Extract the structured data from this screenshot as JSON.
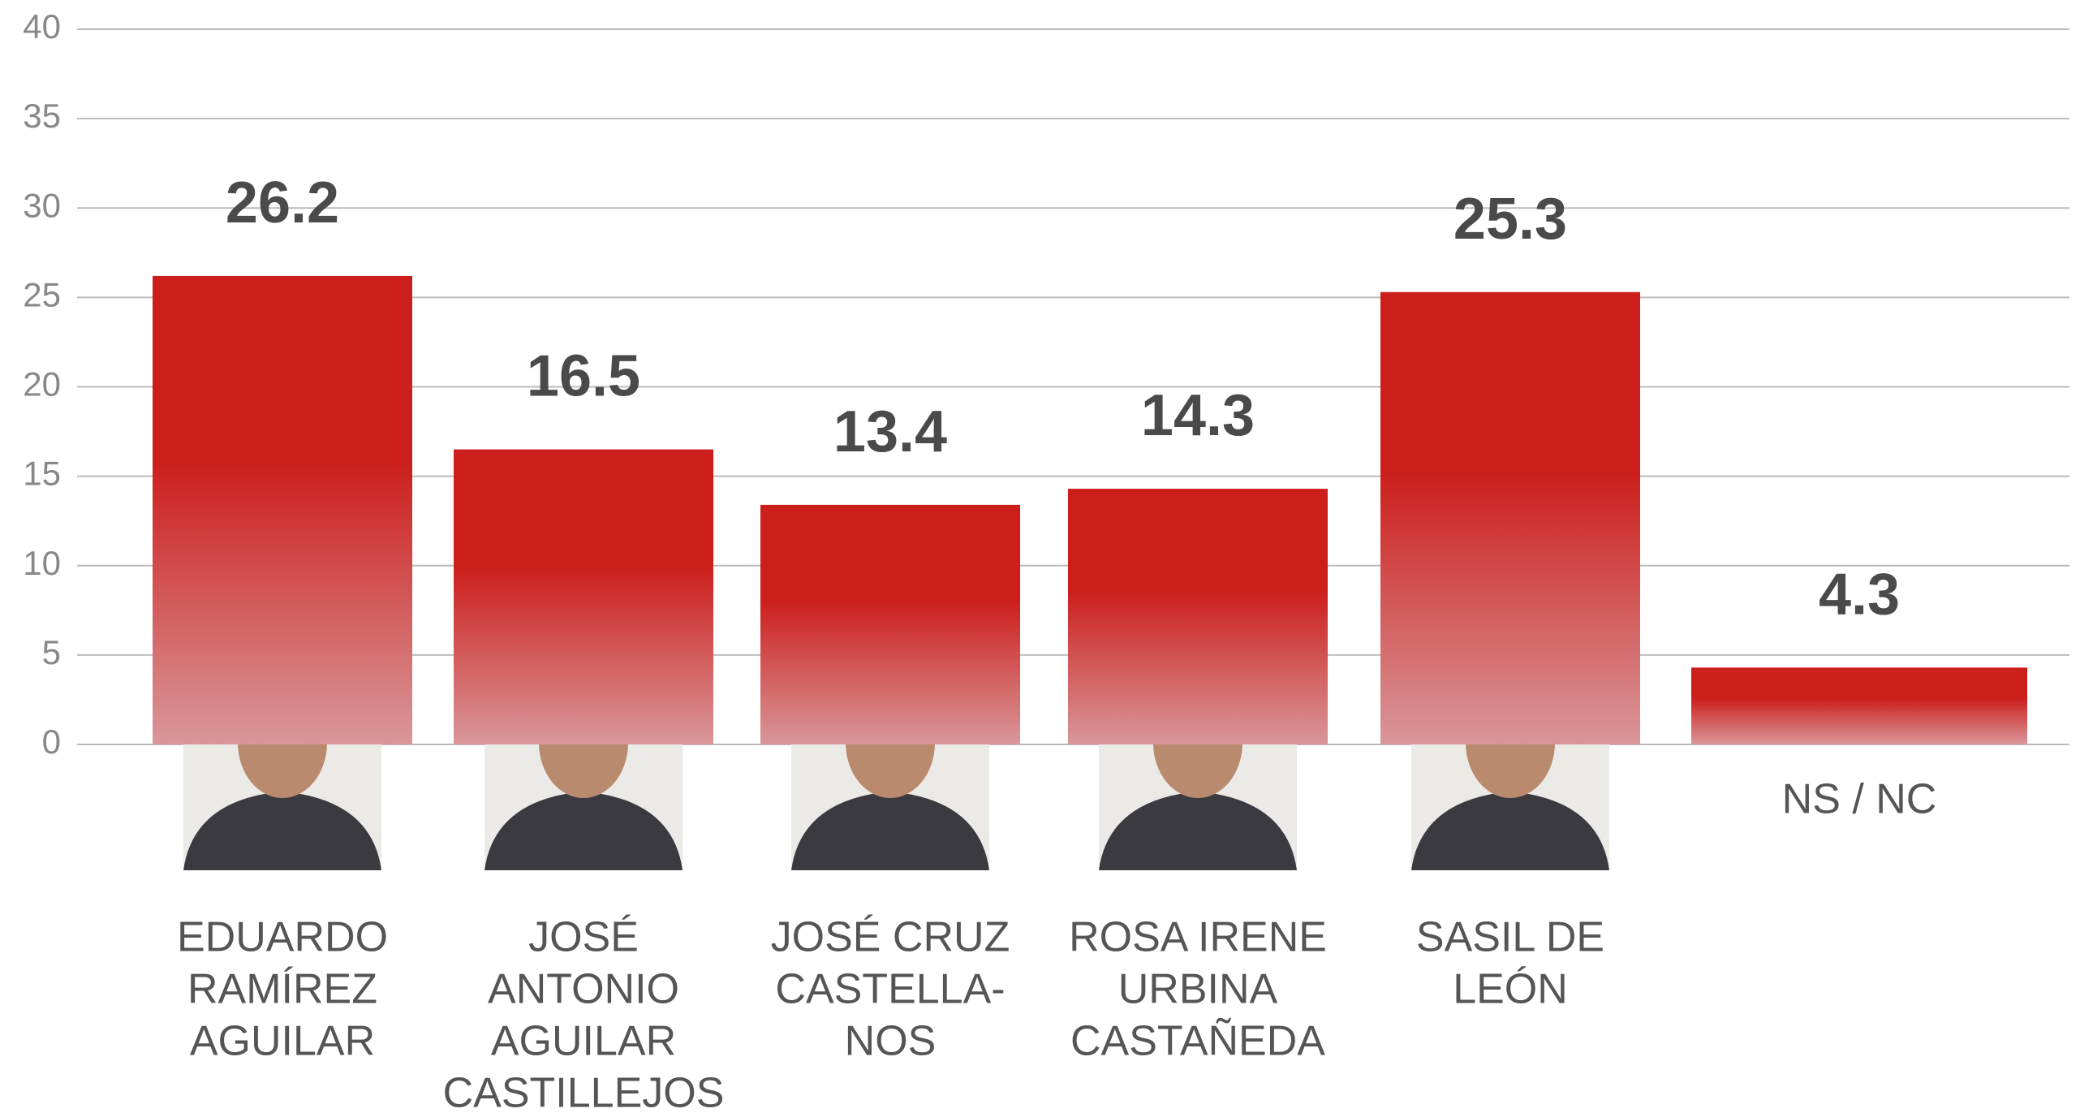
{
  "chart_data": {
    "type": "bar",
    "categories": [
      [
        "EDUARDO",
        "RAMÍREZ",
        "AGUILAR"
      ],
      [
        "JOSÉ",
        "ANTONIO",
        "AGUILAR",
        "CASTILLEJOS"
      ],
      [
        "JOSÉ CRUZ",
        "CASTELLA-",
        "NOS"
      ],
      [
        "ROSA IRENE",
        "URBINA",
        "CASTAÑEDA"
      ],
      [
        "SASIL DE",
        "LEÓN"
      ],
      [
        "NS / NC"
      ]
    ],
    "values": [
      26.2,
      16.5,
      13.4,
      14.3,
      25.3,
      4.3
    ],
    "color": "#cc1f1c",
    "ylim": [
      0,
      40
    ],
    "yticks": [
      0,
      5,
      10,
      15,
      20,
      25,
      30,
      35,
      40
    ],
    "grid": true
  }
}
